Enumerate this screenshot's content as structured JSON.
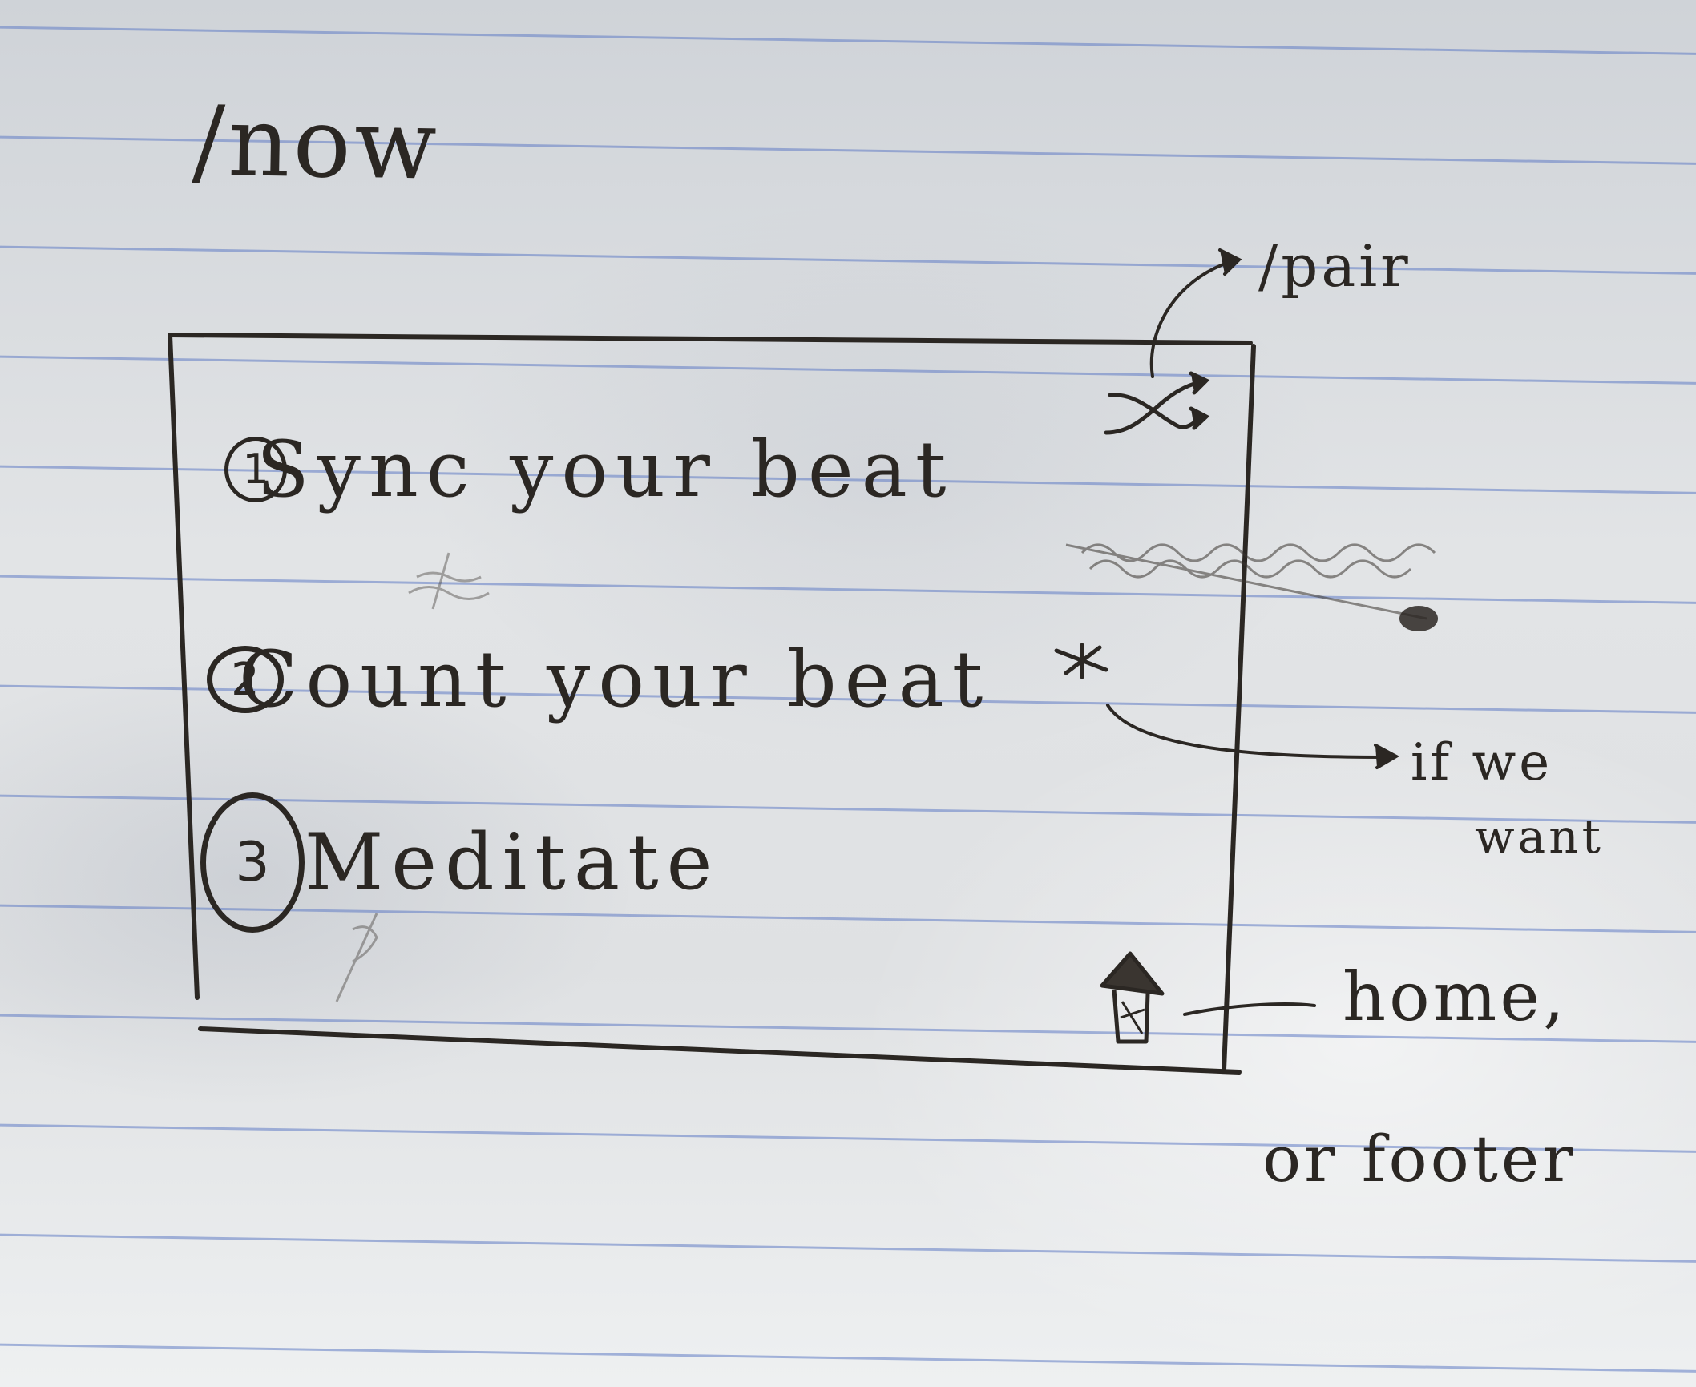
{
  "page_route": "/now",
  "shuffle_link_target": "/pair",
  "list": [
    {
      "number": "1",
      "label": "Sync your beat"
    },
    {
      "number": "2",
      "label": "Count your beat"
    },
    {
      "number": "3",
      "label": "Meditate"
    }
  ],
  "annotations": {
    "if_we_want": [
      "if we",
      "want"
    ],
    "home_footer": [
      "home,",
      "or footer"
    ]
  },
  "icons": {
    "shuffle": "shuffle-icon",
    "home": "home-icon",
    "asterisk": "asterisk-icon"
  },
  "colors": {
    "ink": "#2b2723",
    "paper": "#e2e4e6",
    "rule": "#607cc4"
  }
}
